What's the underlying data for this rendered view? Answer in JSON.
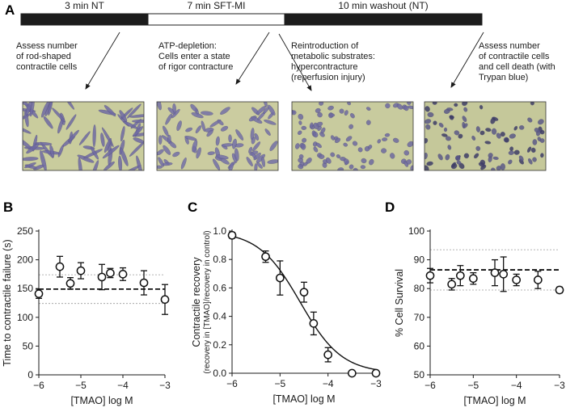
{
  "panels": {
    "a": "A",
    "b": "B",
    "c": "C",
    "d": "D"
  },
  "timeline": [
    {
      "label": "3 min NT",
      "fill": "#1c1c1c",
      "text_color": "#ffffff"
    },
    {
      "label": "7 min SFT-MI",
      "fill": "#ffffff",
      "text_color": "#1a1a1a"
    },
    {
      "label": "10 min washout (NT)",
      "fill": "#1c1c1c",
      "text_color": "#ffffff"
    }
  ],
  "steps": [
    {
      "lines": [
        "Assess number",
        "of rod-shaped",
        "contractile cells"
      ]
    },
    {
      "lines": [
        "ATP-depletion:",
        "Cells enter a state",
        "of rigor contracture"
      ]
    },
    {
      "lines": [
        "Reintroduction of",
        "metabolic substrates:",
        "hypercontracture",
        "(reperfusion injury)"
      ]
    },
    {
      "lines": [
        "Assess number",
        "of contractile cells",
        "and cell death (with",
        "Trypan blue)"
      ]
    }
  ],
  "micrographs": [
    {
      "name": "rod-shaped-cells",
      "background": "#c9cc9d",
      "cell_color": "#6f6aa3",
      "morphology": "rod"
    },
    {
      "name": "rigor-contracture-cells",
      "background": "#cbcca0",
      "cell_color": "#7470a6",
      "morphology": "short-rod"
    },
    {
      "name": "hypercontracture-cells",
      "background": "#c8cb9e",
      "cell_color": "#6e6aa0",
      "morphology": "rounded"
    },
    {
      "name": "trypan-stained-cells",
      "background": "#c5c89a",
      "cell_color": "#5c5a88",
      "morphology": "rounded-dark"
    }
  ],
  "chart_data": [
    {
      "panel": "B",
      "type": "scatter",
      "xlabel": "[TMAO] log M",
      "ylabel": "Time to contractile failure (s)",
      "xlim": [
        -6,
        -3
      ],
      "ylim": [
        0,
        250
      ],
      "x_ticks": [
        -6,
        -5,
        -4,
        -3
      ],
      "y_ticks": [
        0,
        50,
        100,
        150,
        200,
        250
      ],
      "points": [
        {
          "x": -6.0,
          "y": 141,
          "err": 8
        },
        {
          "x": -5.5,
          "y": 188,
          "err": 18
        },
        {
          "x": -5.25,
          "y": 159,
          "err": 10
        },
        {
          "x": -5.0,
          "y": 181,
          "err": 14
        },
        {
          "x": -4.5,
          "y": 170,
          "err": 22
        },
        {
          "x": -4.3,
          "y": 177,
          "err": 8
        },
        {
          "x": -4.0,
          "y": 175,
          "err": 11
        },
        {
          "x": -3.5,
          "y": 160,
          "err": 21
        },
        {
          "x": -3.0,
          "y": 131,
          "err": 26
        }
      ],
      "mean_line": 149,
      "band": [
        124,
        174
      ]
    },
    {
      "panel": "C",
      "type": "scatter",
      "xlabel": "[TMAO] log M",
      "ylabel": "Contractile recovery",
      "ylabel_sub": "(recovery in [TMAO]/recovery in control)",
      "xlim": [
        -6,
        -3
      ],
      "ylim": [
        0.0,
        1.0
      ],
      "x_ticks": [
        -6,
        -5,
        -4,
        -3
      ],
      "y_ticks": [
        0.0,
        0.2,
        0.4,
        0.6,
        0.8,
        1.0
      ],
      "points": [
        {
          "x": -6.0,
          "y": 0.97,
          "err": 0.02
        },
        {
          "x": -5.3,
          "y": 0.82,
          "err": 0.04
        },
        {
          "x": -5.0,
          "y": 0.67,
          "err": 0.12
        },
        {
          "x": -4.5,
          "y": 0.57,
          "err": 0.07
        },
        {
          "x": -4.3,
          "y": 0.35,
          "err": 0.08
        },
        {
          "x": -4.0,
          "y": 0.13,
          "err": 0.05
        },
        {
          "x": -3.5,
          "y": 0.0,
          "err": 0.0
        },
        {
          "x": -3.0,
          "y": 0.0,
          "err": 0.0
        }
      ],
      "fit_curve": {
        "type": "sigmoid",
        "top": 1.0,
        "bottom": 0.0,
        "log_ic50": -4.58,
        "hill_slope": -1.0
      }
    },
    {
      "panel": "D",
      "type": "scatter",
      "xlabel": "[TMAO] log M",
      "ylabel": "% Cell Survival",
      "xlim": [
        -6,
        -3
      ],
      "ylim": [
        50,
        100
      ],
      "x_ticks": [
        -6,
        -5,
        -4,
        -3
      ],
      "y_ticks": [
        50,
        60,
        70,
        80,
        90,
        100
      ],
      "points": [
        {
          "x": -6.0,
          "y": 84.5,
          "err": 2.5
        },
        {
          "x": -5.5,
          "y": 81.5,
          "err": 2.0
        },
        {
          "x": -5.3,
          "y": 84.5,
          "err": 3.5
        },
        {
          "x": -5.0,
          "y": 83.5,
          "err": 2.0
        },
        {
          "x": -4.5,
          "y": 85.5,
          "err": 4.5
        },
        {
          "x": -4.3,
          "y": 85.0,
          "err": 6.0
        },
        {
          "x": -4.0,
          "y": 83.0,
          "err": 2.0
        },
        {
          "x": -3.5,
          "y": 83.0,
          "err": 3.0
        },
        {
          "x": -3.0,
          "y": 79.5,
          "err": 1.0
        }
      ],
      "mean_line": 86.5,
      "band": [
        79.5,
        93.5
      ]
    }
  ]
}
